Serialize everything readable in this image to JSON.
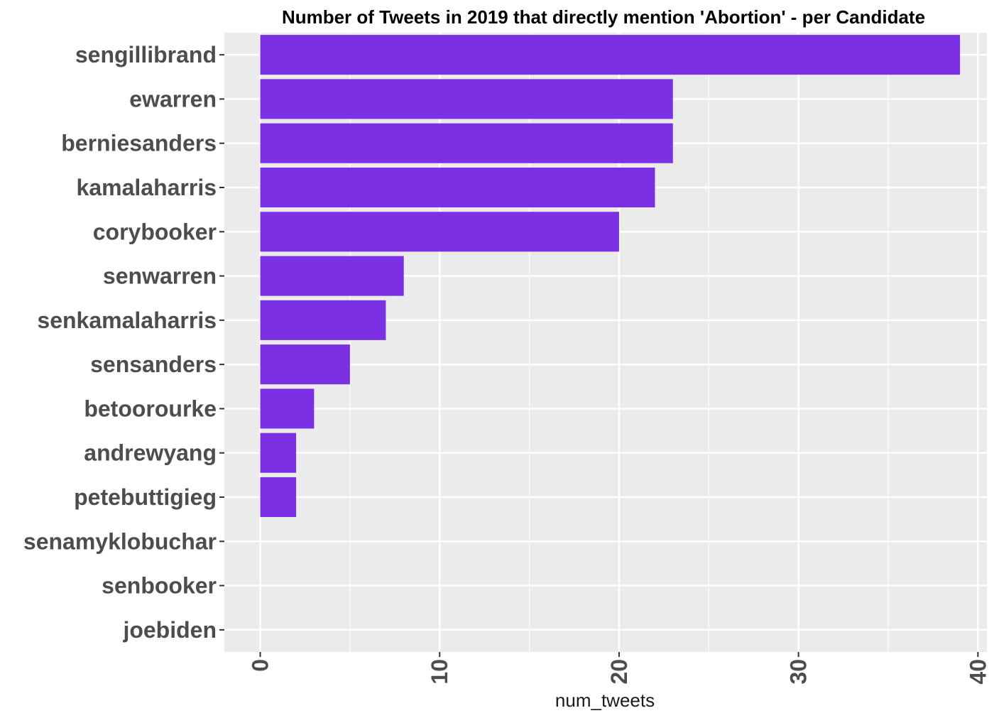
{
  "chart_data": {
    "type": "bar",
    "orientation": "horizontal",
    "title": "Number of Tweets in 2019 that directly mention 'Abortion' - per Candidate",
    "xlabel": "num_tweets",
    "ylabel": "",
    "categories": [
      "sengillibrand",
      "ewarren",
      "berniesanders",
      "kamalaharris",
      "corybooker",
      "senwarren",
      "senkamalaharris",
      "sensanders",
      "betoorourke",
      "andrewyang",
      "petebuttigieg",
      "senamyklobuchar",
      "senbooker",
      "joebiden"
    ],
    "values": [
      39,
      23,
      23,
      22,
      20,
      8,
      7,
      5,
      3,
      2,
      2,
      0,
      0,
      0
    ],
    "xlim": [
      -2,
      40.5
    ],
    "xticks": [
      0,
      10,
      20,
      30,
      40
    ],
    "xticks_minor": [
      5,
      15,
      25,
      35
    ],
    "grid": true,
    "legend": "none",
    "colors": {
      "bar": "#7b31e3",
      "panel": "#ebebeb",
      "grid": "#ffffff",
      "axis_text": "#4d4d4d",
      "title": "#000000"
    }
  }
}
